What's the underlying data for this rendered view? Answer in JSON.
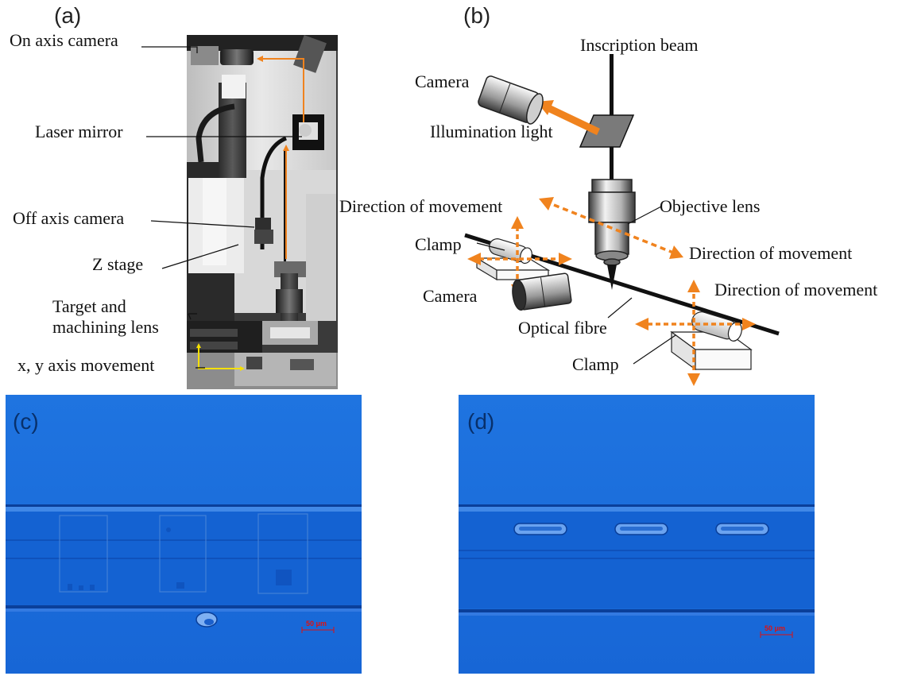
{
  "panels": {
    "a": {
      "label": "(a)"
    },
    "b": {
      "label": "(b)"
    },
    "c": {
      "label": "(c)"
    },
    "d": {
      "label": "(d)"
    }
  },
  "panel_a": {
    "labels": {
      "on_axis_camera": "On axis camera",
      "laser_mirror": "Laser mirror",
      "off_axis_camera": "Off axis camera",
      "z_stage": "Z stage",
      "target_line1": "Target and",
      "target_line2": "machining lens",
      "xy_movement": "x, y axis movement"
    }
  },
  "panel_b": {
    "labels": {
      "inscription_beam": "Inscription beam",
      "camera_top": "Camera",
      "illumination_light": "Illumination light",
      "direction_left": "Direction of movement",
      "objective_lens": "Objective lens",
      "direction_right": "Direction of movement",
      "clamp_left": "Clamp",
      "camera_bottom": "Camera",
      "direction_lower_right": "Direction of movement",
      "optical_fibre": "Optical fibre",
      "clamp_right": "Clamp"
    }
  },
  "scale_bars": {
    "c": "50 μm",
    "d": "50 μm"
  },
  "colors": {
    "arrow_orange": "#f0831e",
    "micro_blue": "#1565d6",
    "micro_band": "#0f56c4",
    "scale_red": "#dd1111"
  }
}
